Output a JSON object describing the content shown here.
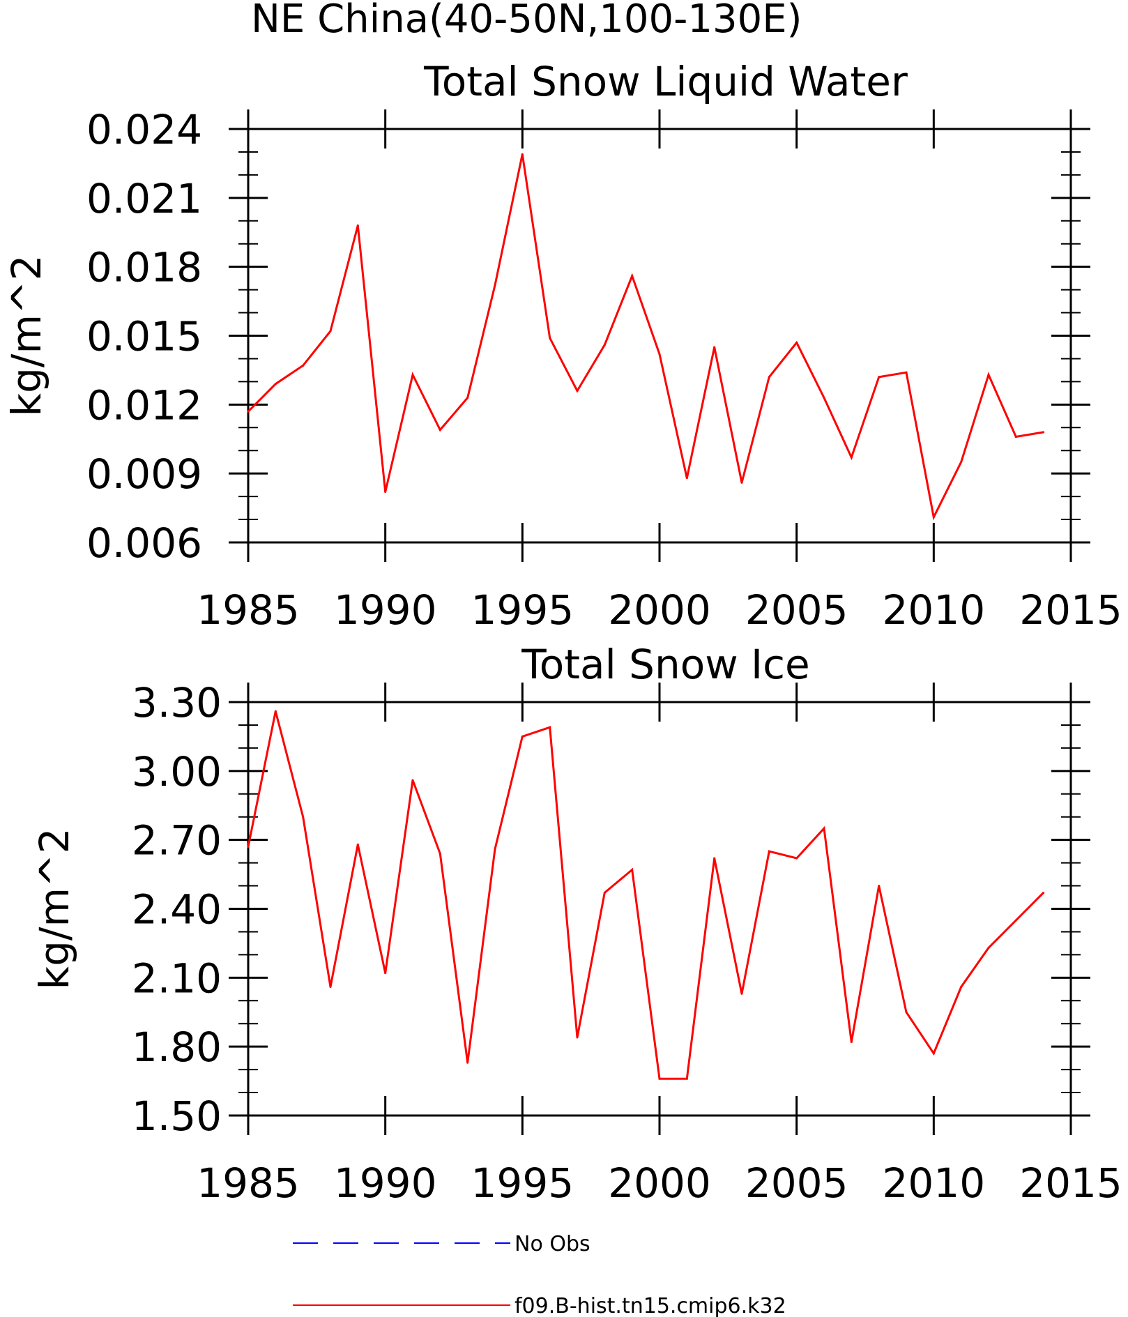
{
  "page_title": "NE China(40-50N,100-130E)",
  "chart_data": [
    {
      "type": "line",
      "title": "Total Snow Liquid Water",
      "xlabel": "",
      "ylabel": "kg/m^2",
      "xlim": [
        1985,
        2015
      ],
      "ylim": [
        0.006,
        0.024
      ],
      "xticks": [
        "1985",
        "1990",
        "1995",
        "2000",
        "2005",
        "2010",
        "2015"
      ],
      "yticks": [
        "0.006",
        "0.009",
        "0.012",
        "0.015",
        "0.018",
        "0.021",
        "0.024"
      ],
      "grid": false,
      "x": [
        1985,
        1986,
        1987,
        1988,
        1989,
        1990,
        1991,
        1992,
        1993,
        1994,
        1995,
        1996,
        1997,
        1998,
        1999,
        2000,
        2001,
        2002,
        2003,
        2004,
        2005,
        2006,
        2007,
        2008,
        2009,
        2010,
        2011,
        2012,
        2013,
        2014
      ],
      "series": [
        {
          "name": "f09.B-hist.tn15.cmip6.k32",
          "color": "#ff0000",
          "dash": "solid",
          "values": [
            0.0117,
            0.0129,
            0.0137,
            0.0152,
            0.0198,
            0.0082,
            0.0133,
            0.0109,
            0.0123,
            0.0172,
            0.0229,
            0.0149,
            0.0126,
            0.0146,
            0.0176,
            0.0142,
            0.0088,
            0.0145,
            0.0086,
            0.0132,
            0.0147,
            0.0123,
            0.0097,
            0.0132,
            0.0134,
            0.0071,
            0.0095,
            0.0133,
            0.0106,
            0.0108
          ]
        }
      ]
    },
    {
      "type": "line",
      "title": "Total Snow Ice",
      "xlabel": "",
      "ylabel": "kg/m^2",
      "xlim": [
        1985,
        2015
      ],
      "ylim": [
        1.5,
        3.3
      ],
      "xticks": [
        "1985",
        "1990",
        "1995",
        "2000",
        "2005",
        "2010",
        "2015"
      ],
      "yticks": [
        "1.50",
        "1.80",
        "2.10",
        "2.40",
        "2.70",
        "3.00",
        "3.30"
      ],
      "grid": false,
      "x": [
        1985,
        1986,
        1987,
        1988,
        1989,
        1990,
        1991,
        1992,
        1993,
        1994,
        1995,
        1996,
        1997,
        1998,
        1999,
        2000,
        2001,
        2002,
        2003,
        2004,
        2005,
        2006,
        2007,
        2008,
        2009,
        2010,
        2011,
        2012,
        2013,
        2014
      ],
      "series": [
        {
          "name": "f09.B-hist.tn15.cmip6.k32",
          "color": "#ff0000",
          "dash": "solid",
          "values": [
            2.67,
            3.26,
            2.8,
            2.06,
            2.68,
            2.12,
            2.96,
            2.64,
            1.73,
            2.66,
            3.15,
            3.19,
            1.84,
            2.47,
            2.57,
            1.66,
            1.66,
            2.62,
            2.03,
            2.65,
            2.62,
            2.75,
            1.82,
            2.5,
            1.95,
            1.77,
            2.06,
            2.23,
            2.35,
            2.47
          ]
        }
      ]
    }
  ],
  "legend": {
    "placement": "bottom-center",
    "entries": [
      {
        "label": "No Obs",
        "color": "#0000ff",
        "dash": "dashed"
      },
      {
        "label": "f09.B-hist.tn15.cmip6.k32",
        "color": "#ff0000",
        "dash": "solid"
      }
    ]
  }
}
